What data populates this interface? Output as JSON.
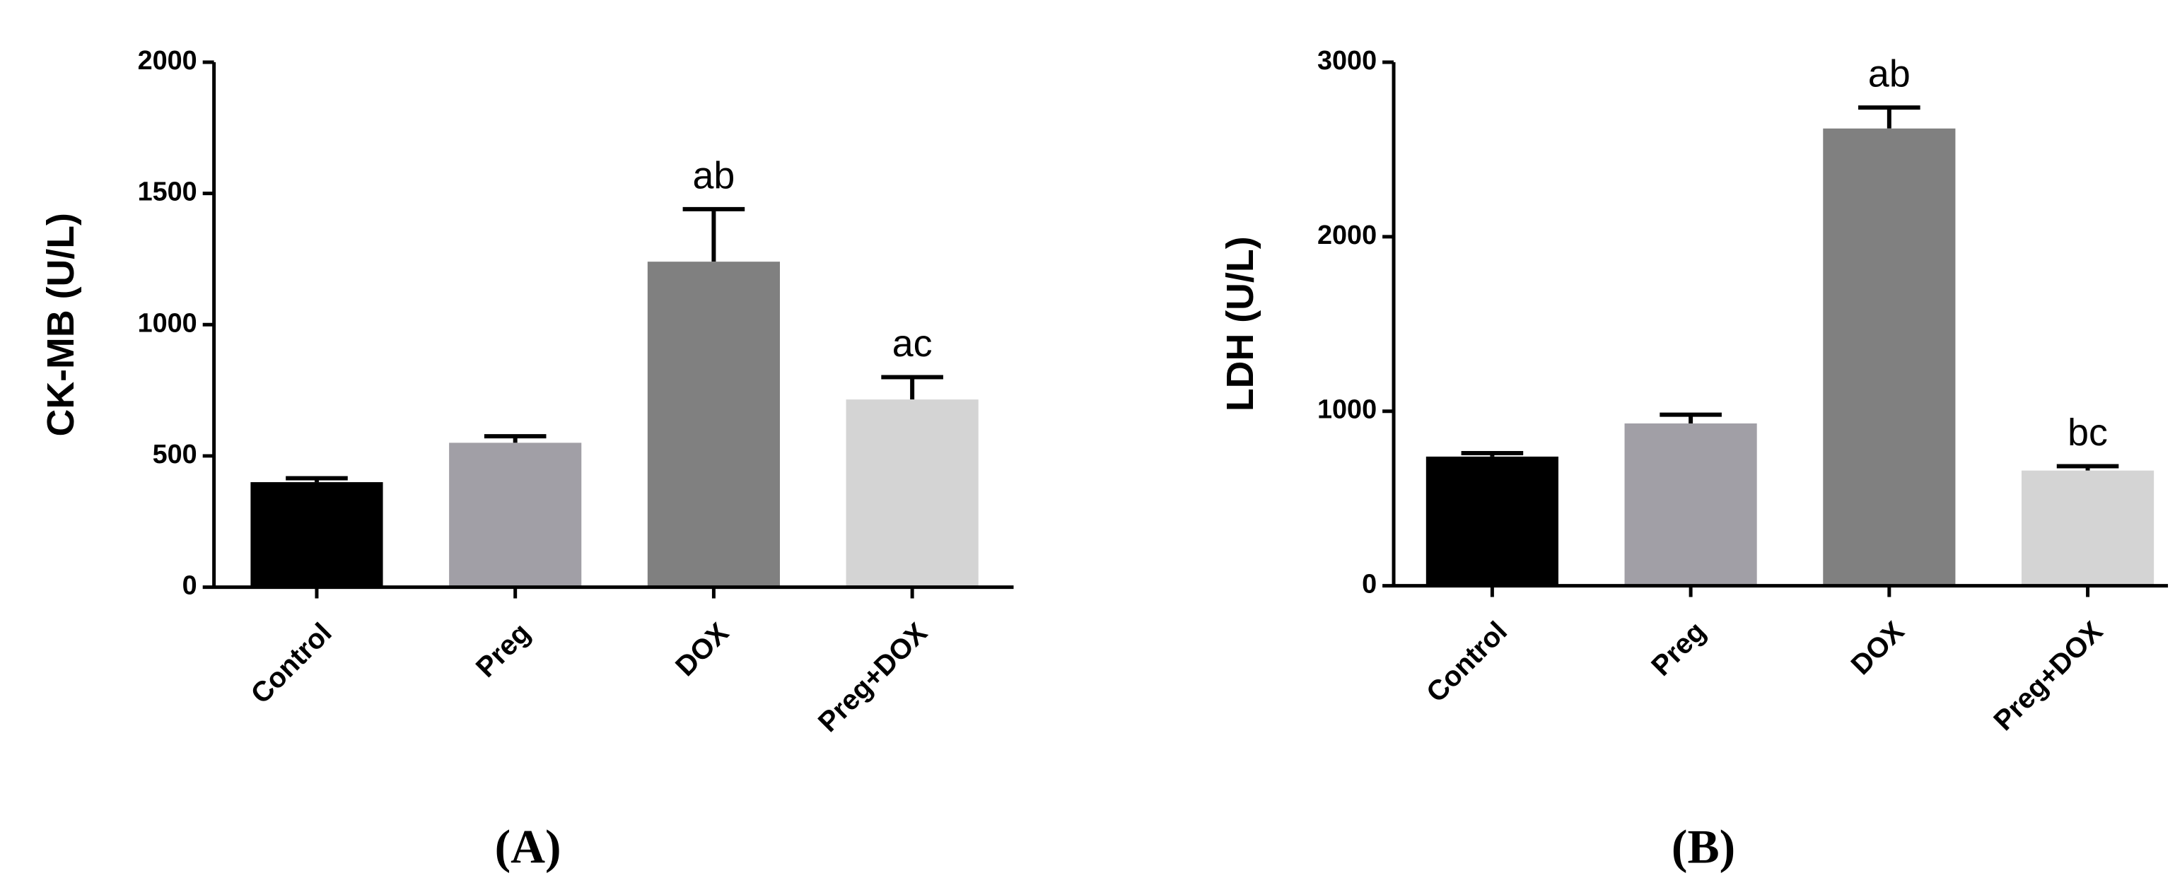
{
  "chart_data": [
    {
      "type": "bar",
      "panel": "(A)",
      "ylabel": "CK-MB (U/L)",
      "categories": [
        "Control",
        "Preg",
        "DOX",
        "Preg+DOX"
      ],
      "values": [
        400,
        550,
        1240,
        715
      ],
      "errors": [
        15,
        25,
        200,
        85
      ],
      "annotations": [
        null,
        null,
        "ab",
        "ac"
      ],
      "colors": [
        "#000000",
        "#a19fa6",
        "#808080",
        "#d4d4d4"
      ],
      "ylim": [
        0,
        2000
      ],
      "yticks": [
        0,
        500,
        1000,
        1500,
        2000
      ]
    },
    {
      "type": "bar",
      "panel": "(B)",
      "ylabel": "LDH (U/L)",
      "categories": [
        "Control",
        "Preg",
        "DOX",
        "Preg+DOX"
      ],
      "values": [
        740,
        930,
        2620,
        660
      ],
      "errors": [
        20,
        50,
        120,
        25
      ],
      "annotations": [
        null,
        null,
        "ab",
        "bc"
      ],
      "colors": [
        "#000000",
        "#a19fa6",
        "#808080",
        "#d4d4d4"
      ],
      "ylim": [
        0,
        3000
      ],
      "yticks": [
        0,
        1000,
        2000,
        3000
      ]
    }
  ]
}
